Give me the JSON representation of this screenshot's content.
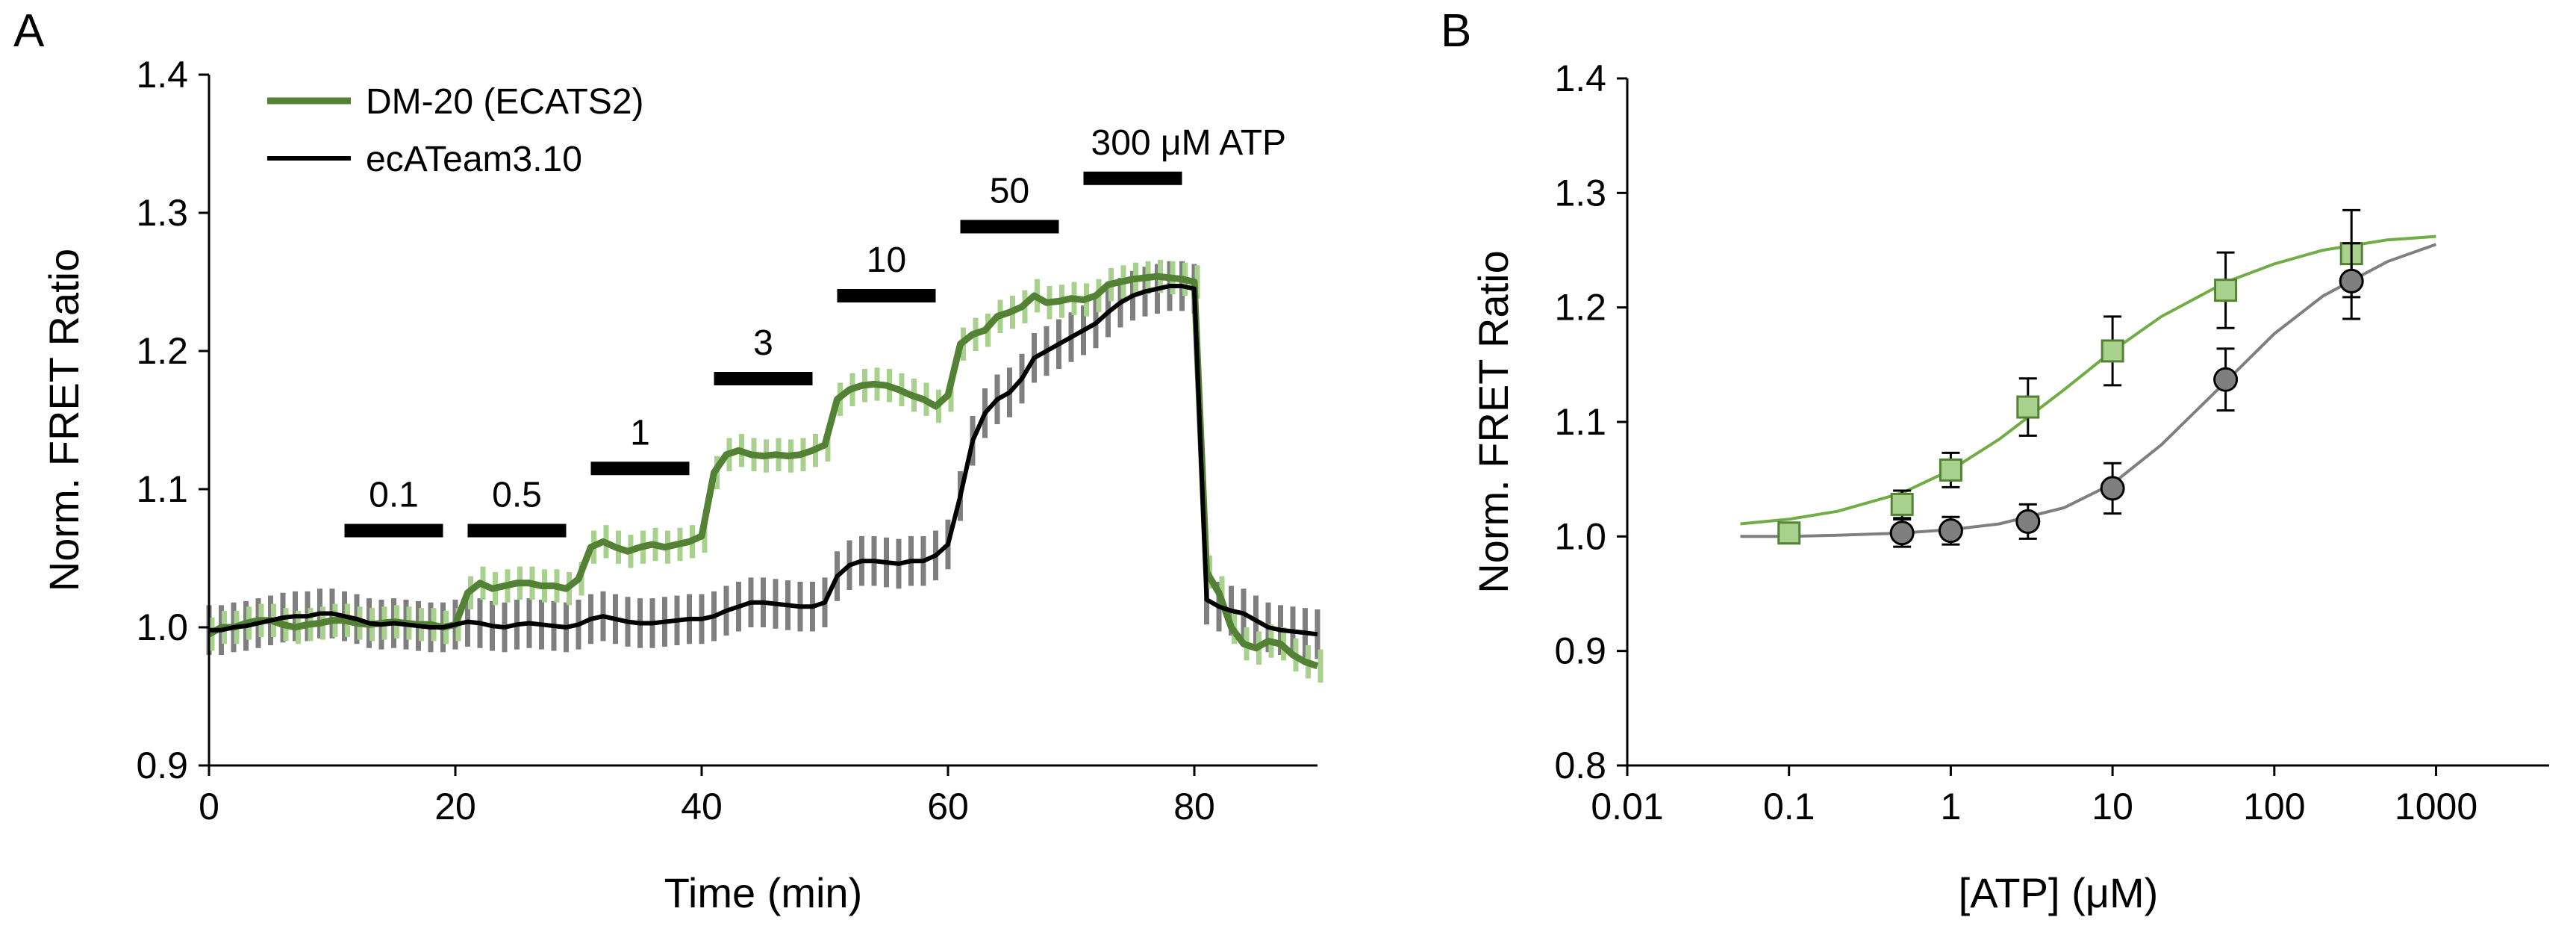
{
  "chart_data": [
    {
      "type": "line",
      "panel": "A",
      "xlabel": "Time (min)",
      "ylabel": "Norm. FRET Ratio",
      "xlim": [
        0,
        90
      ],
      "ylim": [
        0.9,
        1.4
      ],
      "xticks": [
        "0",
        "20",
        "40",
        "60",
        "80"
      ],
      "xtick_values": [
        0,
        20,
        40,
        60,
        80
      ],
      "yticks": [
        "0.9",
        "1.0",
        "1.1",
        "1.2",
        "1.3",
        "1.4"
      ],
      "ytick_values": [
        0.9,
        1.0,
        1.1,
        1.2,
        1.3,
        1.4
      ],
      "colors": {
        "green": "#548235",
        "green_err": "#a9d18e",
        "black": "#000000",
        "black_err": "#7f7f7f"
      },
      "series": [
        {
          "name": "DM-20 (ECATS2)",
          "x": [
            0,
            1,
            2,
            3,
            4,
            5,
            6,
            7,
            8,
            9,
            10,
            11,
            12,
            13,
            14,
            15,
            16,
            17,
            18,
            19,
            20,
            21,
            22,
            23,
            24,
            25,
            26,
            27,
            28,
            29,
            30,
            31,
            32,
            33,
            34,
            35,
            36,
            37,
            38,
            39,
            40,
            41,
            42,
            43,
            44,
            45,
            46,
            47,
            48,
            49,
            50,
            51,
            52,
            53,
            54,
            55,
            56,
            57,
            58,
            59,
            60,
            61,
            62,
            63,
            64,
            65,
            66,
            67,
            68,
            69,
            70,
            71,
            72,
            73,
            74,
            75,
            76,
            77,
            78,
            79,
            80,
            81,
            82,
            83,
            84,
            85,
            86,
            87,
            88,
            89,
            90
          ],
          "y": [
            0.995,
            1.0,
            1.0,
            1.003,
            1.005,
            1.005,
            1.002,
            1.0,
            1.002,
            1.003,
            1.005,
            1.005,
            1.003,
            1.002,
            1.003,
            1.004,
            1.003,
            1.002,
            1.002,
            1.0,
            1.002,
            1.025,
            1.032,
            1.028,
            1.03,
            1.032,
            1.032,
            1.03,
            1.03,
            1.028,
            1.035,
            1.058,
            1.062,
            1.058,
            1.055,
            1.058,
            1.06,
            1.058,
            1.06,
            1.062,
            1.066,
            1.112,
            1.125,
            1.128,
            1.125,
            1.124,
            1.125,
            1.124,
            1.125,
            1.128,
            1.132,
            1.165,
            1.172,
            1.175,
            1.176,
            1.175,
            1.172,
            1.168,
            1.165,
            1.16,
            1.168,
            1.205,
            1.212,
            1.215,
            1.225,
            1.228,
            1.232,
            1.24,
            1.235,
            1.236,
            1.238,
            1.237,
            1.24,
            1.248,
            1.25,
            1.252,
            1.253,
            1.254,
            1.253,
            1.252,
            1.25,
            1.04,
            1.025,
            1.0,
            0.988,
            0.985,
            0.99,
            0.988,
            0.98,
            0.975,
            0.972
          ],
          "err": 0.012
        },
        {
          "name": "ecATeam3.10",
          "x": [
            0,
            1,
            2,
            3,
            4,
            5,
            6,
            7,
            8,
            9,
            10,
            11,
            12,
            13,
            14,
            15,
            16,
            17,
            18,
            19,
            20,
            21,
            22,
            23,
            24,
            25,
            26,
            27,
            28,
            29,
            30,
            31,
            32,
            33,
            34,
            35,
            36,
            37,
            38,
            39,
            40,
            41,
            42,
            43,
            44,
            45,
            46,
            47,
            48,
            49,
            50,
            51,
            52,
            53,
            54,
            55,
            56,
            57,
            58,
            59,
            60,
            61,
            62,
            63,
            64,
            65,
            66,
            67,
            68,
            69,
            70,
            71,
            72,
            73,
            74,
            75,
            76,
            77,
            78,
            79,
            80,
            81,
            82,
            83,
            84,
            85,
            86,
            87,
            88,
            89,
            90
          ],
          "y": [
            0.998,
            0.998,
            1.0,
            1.001,
            1.003,
            1.005,
            1.007,
            1.008,
            1.008,
            1.01,
            1.01,
            1.008,
            1.006,
            1.003,
            1.002,
            1.003,
            1.002,
            1.001,
            1.0,
            1.0,
            1.002,
            1.004,
            1.003,
            1.001,
            1.0,
            1.002,
            1.003,
            1.002,
            1.001,
            1.0,
            1.002,
            1.006,
            1.008,
            1.006,
            1.004,
            1.003,
            1.003,
            1.004,
            1.005,
            1.006,
            1.006,
            1.008,
            1.012,
            1.015,
            1.018,
            1.018,
            1.017,
            1.016,
            1.015,
            1.015,
            1.018,
            1.037,
            1.045,
            1.048,
            1.048,
            1.047,
            1.046,
            1.048,
            1.048,
            1.052,
            1.06,
            1.095,
            1.135,
            1.155,
            1.165,
            1.17,
            1.18,
            1.195,
            1.2,
            1.205,
            1.21,
            1.215,
            1.22,
            1.228,
            1.235,
            1.24,
            1.243,
            1.245,
            1.247,
            1.247,
            1.245,
            1.02,
            1.015,
            1.012,
            1.01,
            1.005,
            1.0,
            0.998,
            0.997,
            0.996,
            0.995
          ],
          "err": 0.018
        }
      ],
      "legend": [
        "DM-20 (ECATS2)",
        "ecATeam3.10"
      ],
      "annotations": [
        {
          "label": "0.1",
          "x_start": 11,
          "x_end": 19,
          "y": 1.07
        },
        {
          "label": "0.5",
          "x_start": 21,
          "x_end": 29,
          "y": 1.07
        },
        {
          "label": "1",
          "x_start": 31,
          "x_end": 39,
          "y": 1.115
        },
        {
          "label": "3",
          "x_start": 41,
          "x_end": 49,
          "y": 1.18
        },
        {
          "label": "10",
          "x_start": 51,
          "x_end": 59,
          "y": 1.24
        },
        {
          "label": "50",
          "x_start": 61,
          "x_end": 69,
          "y": 1.29
        },
        {
          "label": "300 μM ATP",
          "x_start": 71,
          "x_end": 79,
          "y": 1.325
        }
      ]
    },
    {
      "type": "scatter",
      "panel": "B",
      "xlabel": "[ATP] (μM)",
      "ylabel": "Norm. FRET Ratio",
      "xscale": "log",
      "xlim": [
        0.01,
        5000
      ],
      "ylim": [
        0.8,
        1.4
      ],
      "xticks": [
        "0.01",
        "0.1",
        "1",
        "10",
        "100",
        "1000"
      ],
      "xtick_values": [
        0.01,
        0.1,
        1,
        10,
        100,
        1000
      ],
      "yticks": [
        "0.8",
        "0.9",
        "1.0",
        "1.1",
        "1.2",
        "1.3",
        "1.4"
      ],
      "ytick_values": [
        0.8,
        0.9,
        1.0,
        1.1,
        1.2,
        1.3,
        1.4
      ],
      "series": [
        {
          "name": "DM-20 (ECATS2)",
          "marker": "square",
          "x": [
            0.1,
            0.5,
            1,
            3,
            10,
            50,
            300
          ],
          "y": [
            1.003,
            1.028,
            1.058,
            1.113,
            1.162,
            1.215,
            1.247
          ],
          "err": [
            0.005,
            0.012,
            0.015,
            0.025,
            0.03,
            0.033,
            0.038
          ],
          "fit_x": [
            0.05,
            0.1,
            0.2,
            0.5,
            1,
            2,
            5,
            10,
            20,
            50,
            100,
            200,
            500,
            1000
          ],
          "fit_y": [
            1.011,
            1.015,
            1.022,
            1.038,
            1.058,
            1.085,
            1.128,
            1.162,
            1.192,
            1.222,
            1.238,
            1.25,
            1.259,
            1.262
          ]
        },
        {
          "name": "ecATeam3.10",
          "marker": "circle",
          "x": [
            0.5,
            1,
            3,
            10,
            50,
            300
          ],
          "y": [
            1.003,
            1.005,
            1.013,
            1.042,
            1.137,
            1.223
          ],
          "err": [
            0.012,
            0.012,
            0.015,
            0.022,
            0.027,
            0.033
          ],
          "fit_x": [
            0.05,
            0.1,
            0.2,
            0.5,
            1,
            2,
            5,
            10,
            20,
            50,
            100,
            200,
            500,
            1000
          ],
          "fit_y": [
            1.0,
            1.0,
            1.001,
            1.003,
            1.006,
            1.011,
            1.025,
            1.046,
            1.08,
            1.135,
            1.177,
            1.21,
            1.24,
            1.255
          ]
        }
      ]
    }
  ],
  "panels": {
    "a": "A",
    "b": "B"
  }
}
